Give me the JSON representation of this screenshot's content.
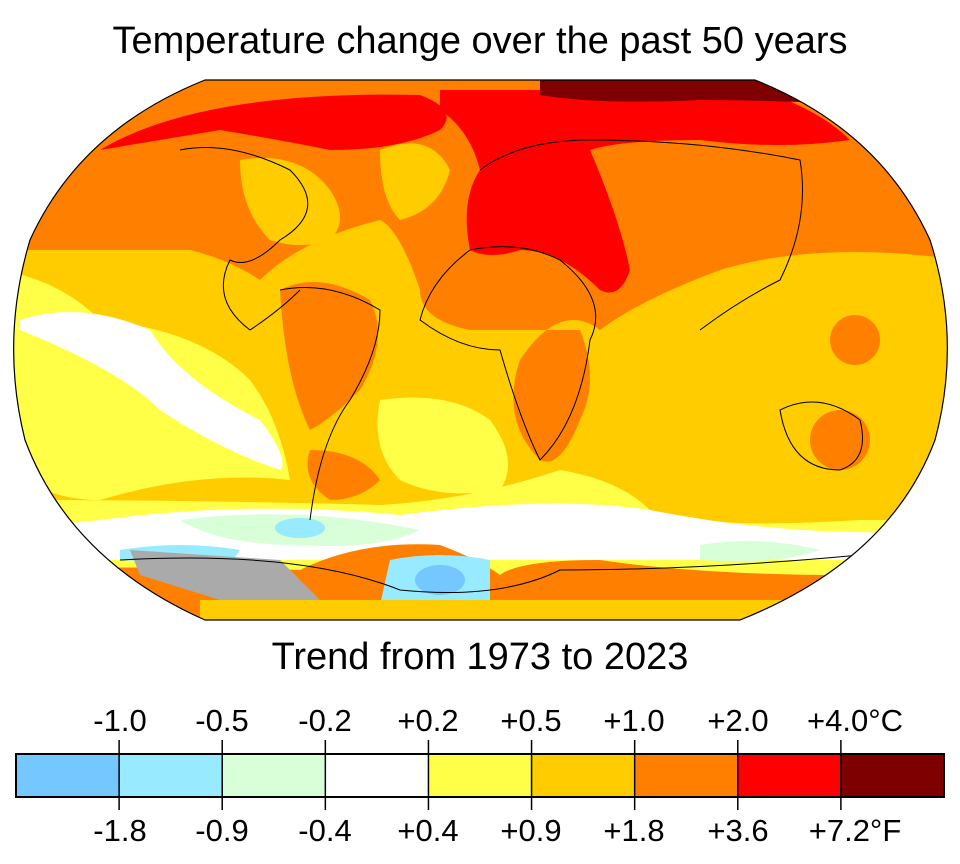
{
  "title": "Temperature change over the past 50 years",
  "subtitle": "Trend from 1973 to 2023",
  "legend": {
    "celsius_ticks": [
      "-1.0",
      "-0.5",
      "-0.2",
      "+0.2",
      "+0.5",
      "+1.0",
      "+2.0",
      "+4.0°C"
    ],
    "fahrenheit_ticks": [
      "-1.8",
      "-0.9",
      "-0.4",
      "+0.4",
      "+0.9",
      "+1.8",
      "+3.6",
      "+7.2°F"
    ],
    "colors": [
      "#74c8ff",
      "#98eaff",
      "#d8ffd8",
      "#ffffff",
      "#ffff48",
      "#ffcc00",
      "#ff8000",
      "#ff0000",
      "#7f0000"
    ]
  },
  "no_data_color": "#aaaaaa"
}
